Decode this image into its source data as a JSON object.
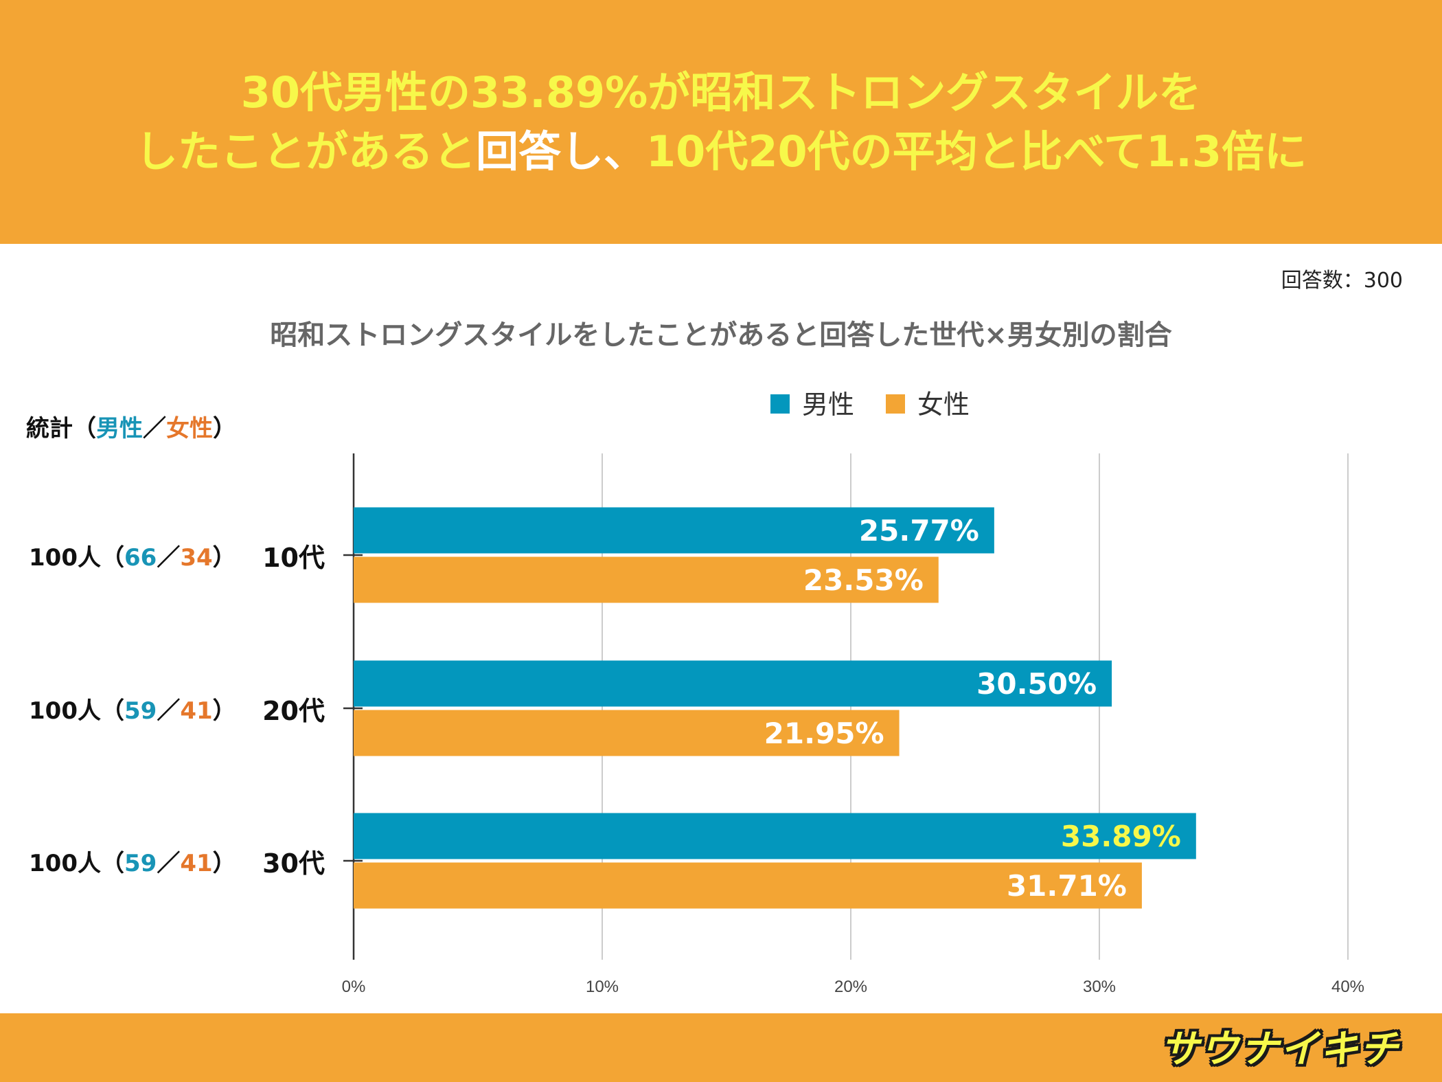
{
  "headline": {
    "line1": "30代男性の33.89%が昭和ストロングスタイルを",
    "line2_part1": "したことがあると",
    "line2_part2": "回答し、",
    "line2_part3": "10代20代の平均と比べて1.3倍に"
  },
  "response_count": "回答数：300",
  "stats_heading": {
    "prefix": "統計（",
    "male": "男性",
    "sep": "／",
    "female": "女性",
    "suffix": "）"
  },
  "row_stats": [
    {
      "total": "100人（",
      "male": "66",
      "sep": "／",
      "female": "34",
      "close": "）"
    },
    {
      "total": "100人（",
      "male": "59",
      "sep": "／",
      "female": "41",
      "close": "）"
    },
    {
      "total": "100人（",
      "male": "59",
      "sep": "／",
      "female": "41",
      "close": "）"
    }
  ],
  "colors": {
    "male": "#0397bd",
    "female": "#f3a534",
    "highlight": "#f7f84a"
  },
  "chart_data": {
    "type": "bar",
    "orientation": "horizontal",
    "title": "昭和ストロングスタイルをしたことがあると回答した世代×男女別の割合",
    "categories": [
      "10代",
      "20代",
      "30代"
    ],
    "series": [
      {
        "name": "男性",
        "values": [
          25.77,
          30.5,
          33.89
        ],
        "labels": [
          "25.77%",
          "30.50%",
          "33.89%"
        ]
      },
      {
        "name": "女性",
        "values": [
          23.53,
          21.95,
          31.71
        ],
        "labels": [
          "23.53%",
          "21.95%",
          "31.71%"
        ]
      }
    ],
    "xlim": [
      0,
      40
    ],
    "xticks": [
      0,
      10,
      20,
      30,
      40
    ],
    "xtick_labels": [
      "0%",
      "10%",
      "20%",
      "30%",
      "40%"
    ],
    "legend_position": "top",
    "grid": true,
    "highlight": {
      "series": 0,
      "category": 2
    }
  },
  "footer": {
    "logo": "サウナイキチ"
  }
}
